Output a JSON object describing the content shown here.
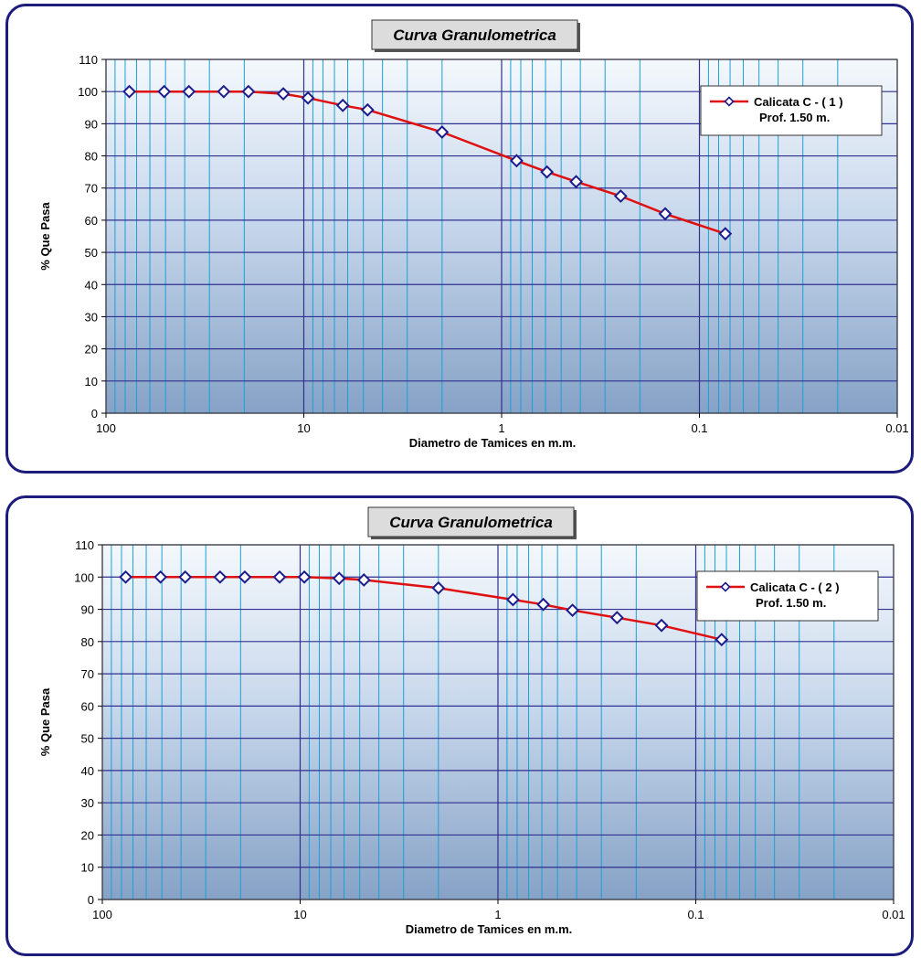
{
  "chart_data": [
    {
      "type": "line",
      "title": "Curva Granulometrica",
      "xlabel": "Diametro de Tamices en  m.m.",
      "ylabel": "% Que Pasa",
      "xscale": "log",
      "x_reversed": true,
      "xlim": [
        100,
        0.01
      ],
      "ylim": [
        0,
        110
      ],
      "y_ticks": [
        "0",
        "10",
        "20",
        "30",
        "40",
        "50",
        "60",
        "70",
        "80",
        "90",
        "100",
        "110"
      ],
      "x_ticks": [
        "100",
        "10",
        "1",
        "0.1",
        "0.01"
      ],
      "x_tick_values": [
        100,
        10,
        1,
        0.1,
        0.01
      ],
      "grid": true,
      "legend_position": "top-right",
      "legend_lines": [
        "Calicata C - ( 1 )",
        "Prof. 1.50 m."
      ],
      "series": [
        {
          "name": "Calicata C - ( 1 ) Prof. 1.50 m.",
          "color": "#e01010",
          "marker": "diamond",
          "x": [
            76.2,
            50.8,
            38.1,
            25.4,
            19.05,
            12.7,
            9.525,
            6.35,
            4.76,
            2.0,
            0.84,
            0.59,
            0.42,
            0.25,
            0.149,
            0.074
          ],
          "y": [
            100,
            100,
            100,
            100,
            100,
            99.3,
            98,
            95.7,
            94.3,
            87.4,
            78.5,
            75,
            72,
            67.5,
            62,
            55.8
          ]
        }
      ]
    },
    {
      "type": "line",
      "title": "Curva Granulometrica",
      "xlabel": "Diametro de Tamices en  m.m.",
      "ylabel": "% Que Pasa",
      "xscale": "log",
      "x_reversed": true,
      "xlim": [
        100,
        0.01
      ],
      "ylim": [
        0,
        110
      ],
      "y_ticks": [
        "0",
        "10",
        "20",
        "30",
        "40",
        "50",
        "60",
        "70",
        "80",
        "90",
        "100",
        "110"
      ],
      "x_ticks": [
        "100",
        "10",
        "1",
        "0.1",
        "0.01"
      ],
      "x_tick_values": [
        100,
        10,
        1,
        0.1,
        0.01
      ],
      "grid": true,
      "legend_position": "top-right",
      "legend_lines": [
        "Calicata C - ( 2 )",
        "Prof. 1.50 m."
      ],
      "series": [
        {
          "name": "Calicata C - ( 2 ) Prof. 1.50 m.",
          "color": "#e01010",
          "marker": "diamond",
          "x": [
            76.2,
            50.8,
            38.1,
            25.4,
            19.05,
            12.7,
            9.525,
            6.35,
            4.76,
            2.0,
            0.84,
            0.59,
            0.42,
            0.25,
            0.149,
            0.074
          ],
          "y": [
            100,
            100,
            100,
            100,
            100,
            100,
            100,
            99.6,
            99.1,
            96.6,
            93,
            91.5,
            89.7,
            87.4,
            85,
            80.6
          ]
        }
      ]
    }
  ]
}
